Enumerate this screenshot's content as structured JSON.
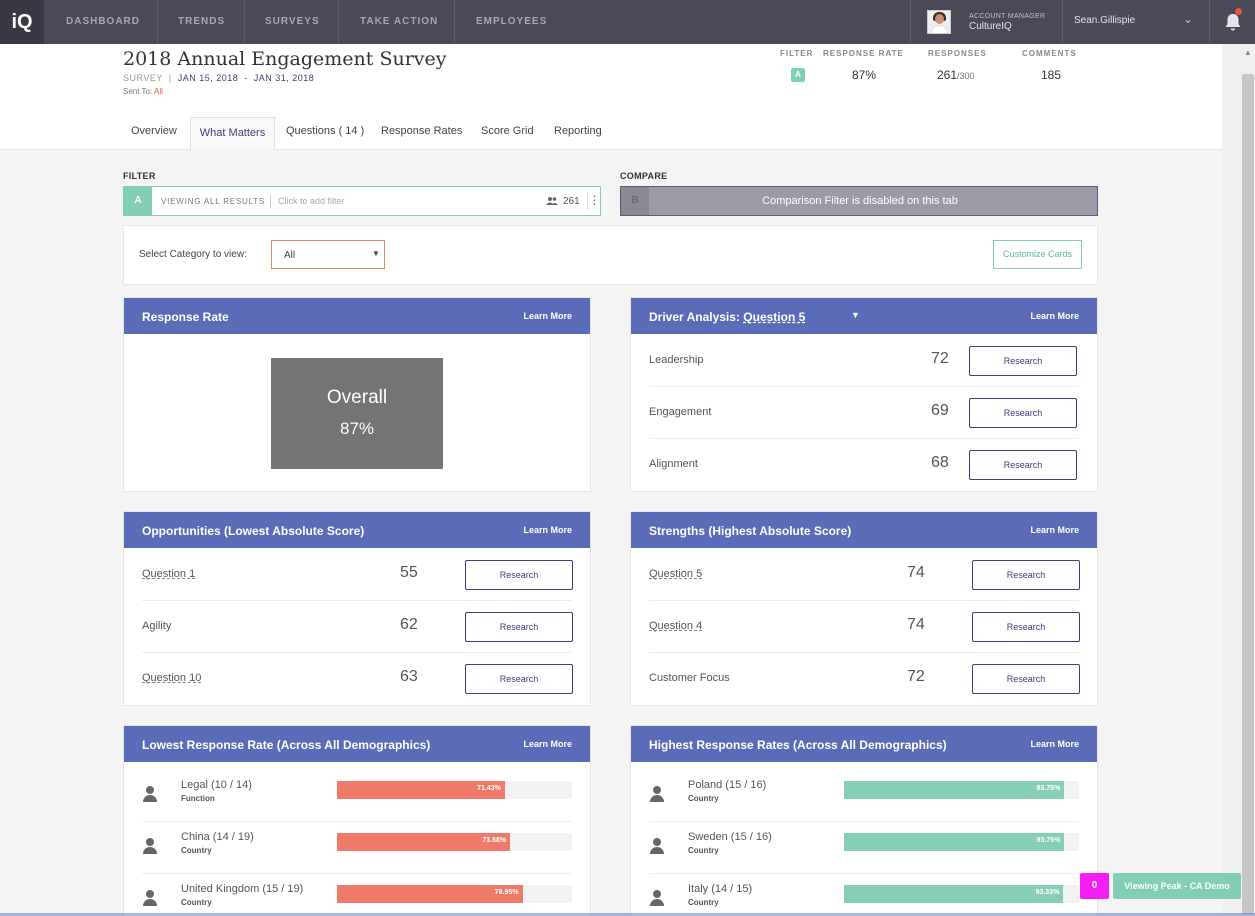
{
  "nav": {
    "logo": "iQ",
    "items": [
      "DASHBOARD",
      "TRENDS",
      "SURVEYS",
      "TAKE ACTION",
      "EMPLOYEES"
    ],
    "account_label": "ACCOUNT MANAGER",
    "account_name": "CultureIQ",
    "user_name": "Sean.Gillispie"
  },
  "survey": {
    "title": "2018 Annual Engagement Survey",
    "type": "SURVEY",
    "start": "JAN 15, 2018",
    "end": "JAN 31, 2018",
    "sent_to_label": "Sent To:",
    "sent_to": "All"
  },
  "stats": {
    "filter_label": "FILTER",
    "filter_value": "A",
    "response_rate_label": "RESPONSE RATE",
    "response_rate": "87%",
    "responses_label": "RESPONSES",
    "responses": "261",
    "responses_total": "/300",
    "comments_label": "COMMENTS",
    "comments": "185"
  },
  "tabs": [
    "Overview",
    "What Matters",
    "Questions ( 14 )",
    "Response Rates",
    "Score Grid",
    "Reporting"
  ],
  "filter": {
    "label": "FILTER",
    "letter": "A",
    "viewing": "VIEWING ALL RESULTS",
    "placeholder": "Click to add filter",
    "count": "261"
  },
  "compare": {
    "label": "COMPARE",
    "letter": "B",
    "message": "Comparison Filter is disabled on this tab"
  },
  "category": {
    "label": "Select Category to view:",
    "selected": "All",
    "customize": "Customize Cards"
  },
  "cards": {
    "learn_more": "Learn More",
    "research": "Research",
    "response_rate": {
      "title": "Response Rate",
      "overall_label": "Overall",
      "overall_value": "87%"
    },
    "driver": {
      "title_prefix": "Driver Analysis:",
      "title_question": "Question 5",
      "rows": [
        {
          "label": "Leadership",
          "score": "72"
        },
        {
          "label": "Engagement",
          "score": "69"
        },
        {
          "label": "Alignment",
          "score": "68"
        }
      ]
    },
    "opportunities": {
      "title": "Opportunities (Lowest Absolute Score)",
      "rows": [
        {
          "label": "Question 1",
          "score": "55"
        },
        {
          "label": "Agility",
          "score": "62"
        },
        {
          "label": "Question 10",
          "score": "63"
        }
      ]
    },
    "strengths": {
      "title": "Strengths (Highest Absolute Score)",
      "rows": [
        {
          "label": "Question 5",
          "score": "74"
        },
        {
          "label": "Question 4",
          "score": "74"
        },
        {
          "label": "Customer Focus",
          "score": "72"
        }
      ]
    },
    "lowest_rates": {
      "title": "Lowest Response Rate (Across All Demographics)",
      "color": "#f07a6a",
      "rows": [
        {
          "name": "Legal (10 / 14)",
          "category": "Function",
          "pct": "71.43%",
          "value": 71.43
        },
        {
          "name": "China (14 / 19)",
          "category": "Country",
          "pct": "73.68%",
          "value": 73.68
        },
        {
          "name": "United Kingdom (15 / 19)",
          "category": "Country",
          "pct": "78.95%",
          "value": 78.95
        }
      ]
    },
    "highest_rates": {
      "title": "Highest Response Rates (Across All Demographics)",
      "color": "#86cfb5",
      "rows": [
        {
          "name": "Poland (15 / 16)",
          "category": "Country",
          "pct": "93.75%",
          "value": 93.75
        },
        {
          "name": "Sweden (15 / 16)",
          "category": "Country",
          "pct": "93.75%",
          "value": 93.75
        },
        {
          "name": "Italy (14 / 15)",
          "category": "Country",
          "pct": "93.33%",
          "value": 93.33
        }
      ]
    }
  },
  "footer": {
    "badge": "0",
    "viewing": "Viewing Peak - CA Demo"
  }
}
